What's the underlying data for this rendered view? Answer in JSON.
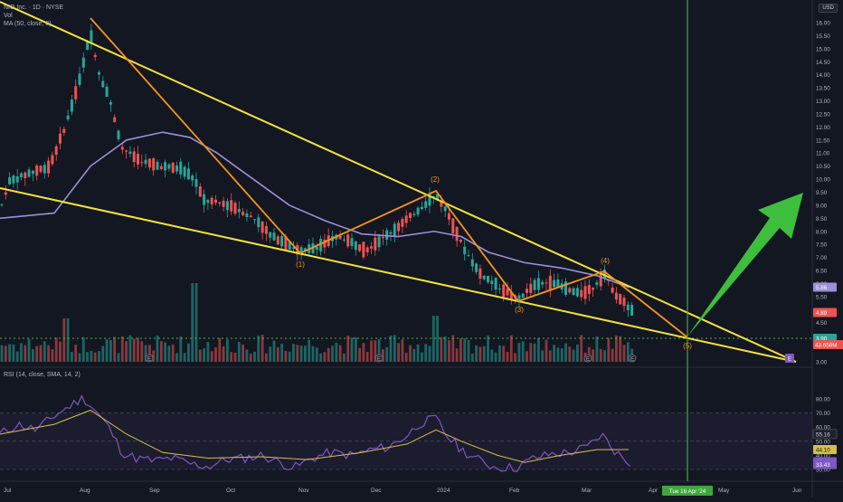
{
  "legend": {
    "symbol": "NIO Inc. · 1D · NYSE",
    "vol": "Vol",
    "ma": "MA (50, close, 0)",
    "rsi": "RSI (14, close, SMA, 14, 2)"
  },
  "currency_button": "USD",
  "colors": {
    "background": "#131722",
    "up": "#26a69a",
    "down": "#ef5350",
    "ma": "#9c8fd8",
    "trendline": "#f5e23a",
    "wave": "#f7931a",
    "arrow": "#3dbe3d",
    "vline": "#3ea83e",
    "rsi": "#7e57c2",
    "rsi_ma": "#d4c04a"
  },
  "price_axis": {
    "ticks": [
      "16.00",
      "15.50",
      "15.00",
      "14.50",
      "14.00",
      "13.50",
      "13.00",
      "12.50",
      "12.00",
      "11.50",
      "11.00",
      "10.50",
      "10.00",
      "9.50",
      "9.00",
      "8.50",
      "8.00",
      "7.50",
      "7.00",
      "6.50",
      "6.00",
      "5.50",
      "4.50",
      "3.00"
    ],
    "badges": [
      {
        "label": "5.86",
        "color": "#9c8fd8",
        "price": 5.86
      },
      {
        "label": "4.89",
        "color": "#ef5350",
        "price": 4.89
      },
      {
        "label": "3.90",
        "color": "#26a69a",
        "price": 3.9
      }
    ],
    "volume_badge": {
      "label": "43.658M",
      "color": "#ef5350"
    }
  },
  "rsi_axis": {
    "ticks": [
      "80.00",
      "70.00",
      "60.00",
      "50.00",
      "40.00",
      "30.00"
    ],
    "badges": [
      {
        "label": "55.16",
        "value": 55.16
      },
      {
        "label": "44.10",
        "value": 44.1
      },
      {
        "label": "35.42",
        "value": 35.42
      },
      {
        "label": "33.43",
        "value": 33.43
      }
    ]
  },
  "time_axis": {
    "labels": [
      "Jul",
      "Aug",
      "Sep",
      "Oct",
      "Nov",
      "Dec",
      "2024",
      "Feb",
      "Mar",
      "Apr",
      "May",
      "Jun"
    ],
    "cursor_label": "Tue 16 Apr '24"
  },
  "wave_labels": [
    "(1)",
    "(2)",
    "(3)",
    "(4)",
    "(5)"
  ],
  "event_markers": [
    "E",
    "E",
    "E",
    "E"
  ],
  "target_marker": "E",
  "support_level": 3.9
}
